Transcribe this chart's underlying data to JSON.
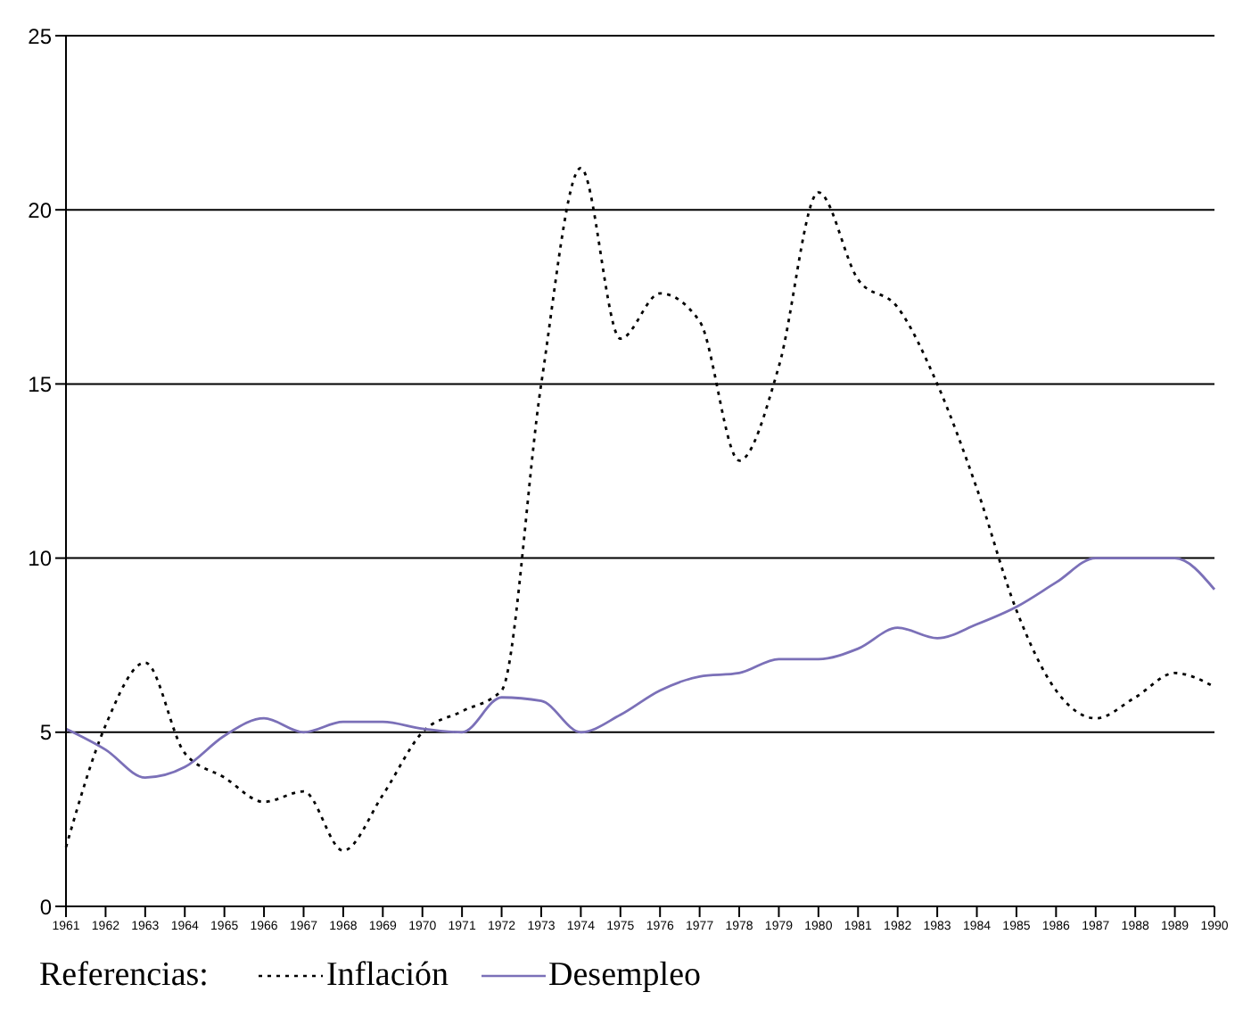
{
  "chart_data": {
    "type": "line",
    "legend_title": "Referencias:",
    "categories": [
      "1961",
      "1962",
      "1963",
      "1964",
      "1965",
      "1966",
      "1967",
      "1968",
      "1969",
      "1970",
      "1971",
      "1972",
      "1973",
      "1974",
      "1975",
      "1976",
      "1977",
      "1978",
      "1979",
      "1980",
      "1981",
      "1982",
      "1983",
      "1984",
      "1985",
      "1986",
      "1987",
      "1988",
      "1989",
      "1990"
    ],
    "series": [
      {
        "name": "Inflación",
        "color": "#000000",
        "line_style": "dotted",
        "values": [
          1.7,
          5.2,
          7.0,
          4.4,
          3.7,
          3.0,
          3.3,
          1.6,
          3.2,
          5.0,
          5.6,
          6.2,
          15.0,
          21.2,
          16.3,
          17.6,
          16.8,
          12.8,
          15.5,
          20.5,
          18.0,
          17.2,
          15.0,
          12.0,
          8.5,
          6.2,
          5.4,
          6.0,
          6.7,
          6.3
        ]
      },
      {
        "name": "Desempleo",
        "color": "#7b70b8",
        "line_style": "solid",
        "values": [
          5.1,
          4.5,
          3.7,
          4.0,
          4.9,
          5.4,
          5.0,
          5.3,
          5.3,
          5.1,
          5.0,
          6.0,
          5.9,
          5.0,
          5.5,
          6.2,
          6.6,
          6.7,
          7.1,
          7.1,
          7.4,
          8.0,
          7.7,
          8.1,
          8.6,
          9.3,
          10.0,
          10.0,
          10.0,
          9.1
        ]
      }
    ],
    "ylim": [
      0,
      25
    ],
    "yticks": [
      0,
      5,
      10,
      15,
      20,
      25
    ],
    "grid": "y",
    "legend": "bottom",
    "marker": "none"
  }
}
